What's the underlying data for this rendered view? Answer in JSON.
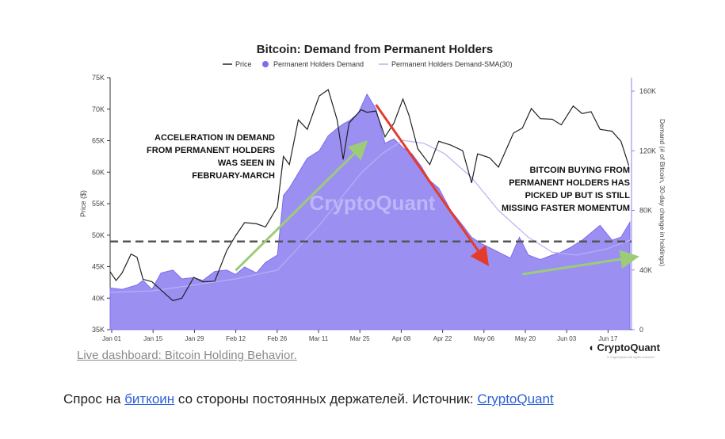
{
  "chart_data": {
    "type": "area+line",
    "title": "Bitcoin: Demand from Permanent Holders",
    "legend": [
      {
        "name": "Price",
        "color": "#222222",
        "style": "line"
      },
      {
        "name": "Permanent Holders Demand",
        "color": "#7b6cf0",
        "style": "dot"
      },
      {
        "name": "Permanent Holders Demand-SMA(30)",
        "color": "#b9b0f3",
        "style": "line"
      }
    ],
    "legend_position": "top-center",
    "y_left": {
      "label": "Price ($)",
      "ticks": [
        "35K",
        "40K",
        "45K",
        "50K",
        "55K",
        "60K",
        "65K",
        "70K",
        "75K"
      ],
      "values": [
        35000,
        40000,
        45000,
        50000,
        55000,
        60000,
        65000,
        70000,
        75000
      ]
    },
    "y_right": {
      "label": "Demand (# of Bitcoin, 30-day change in holdings)",
      "ticks": [
        "0",
        "40K",
        "80K",
        "120K",
        "160K"
      ],
      "values": [
        0,
        40000,
        80000,
        120000,
        160000
      ]
    },
    "x_ticks": [
      "Jan 01",
      "Jan 15",
      "Jan 29",
      "Feb 12",
      "Feb 26",
      "Mar 11",
      "Mar 25",
      "Apr 08",
      "Apr 22",
      "May 06",
      "May 20",
      "Jun 03",
      "Jun 17"
    ],
    "x_start": "2024-01-01",
    "x_end": "2024-06-23",
    "price": [
      [
        "2024-01-01",
        44200
      ],
      [
        "2024-01-03",
        42800
      ],
      [
        "2024-01-05",
        44000
      ],
      [
        "2024-01-08",
        47000
      ],
      [
        "2024-01-10",
        46500
      ],
      [
        "2024-01-12",
        43000
      ],
      [
        "2024-01-15",
        42600
      ],
      [
        "2024-01-18",
        41300
      ],
      [
        "2024-01-22",
        39600
      ],
      [
        "2024-01-25",
        40000
      ],
      [
        "2024-01-29",
        43300
      ],
      [
        "2024-02-01",
        42600
      ],
      [
        "2024-02-05",
        42700
      ],
      [
        "2024-02-09",
        47500
      ],
      [
        "2024-02-12",
        49900
      ],
      [
        "2024-02-15",
        52000
      ],
      [
        "2024-02-19",
        51800
      ],
      [
        "2024-02-22",
        51300
      ],
      [
        "2024-02-26",
        54500
      ],
      [
        "2024-02-28",
        62500
      ],
      [
        "2024-03-01",
        61200
      ],
      [
        "2024-03-04",
        68300
      ],
      [
        "2024-03-07",
        66800
      ],
      [
        "2024-03-11",
        72100
      ],
      [
        "2024-03-14",
        73100
      ],
      [
        "2024-03-17",
        68300
      ],
      [
        "2024-03-19",
        62000
      ],
      [
        "2024-03-21",
        67800
      ],
      [
        "2024-03-25",
        69900
      ],
      [
        "2024-03-27",
        69500
      ],
      [
        "2024-03-30",
        69700
      ],
      [
        "2024-04-02",
        65600
      ],
      [
        "2024-04-05",
        67800
      ],
      [
        "2024-04-08",
        71600
      ],
      [
        "2024-04-10",
        69100
      ],
      [
        "2024-04-13",
        63700
      ],
      [
        "2024-04-17",
        61200
      ],
      [
        "2024-04-20",
        64900
      ],
      [
        "2024-04-24",
        64300
      ],
      [
        "2024-04-28",
        63400
      ],
      [
        "2024-05-01",
        58300
      ],
      [
        "2024-05-03",
        62900
      ],
      [
        "2024-05-07",
        62300
      ],
      [
        "2024-05-10",
        60800
      ],
      [
        "2024-05-15",
        66200
      ],
      [
        "2024-05-18",
        67000
      ],
      [
        "2024-05-21",
        70100
      ],
      [
        "2024-05-24",
        68500
      ],
      [
        "2024-05-28",
        68400
      ],
      [
        "2024-05-31",
        67500
      ],
      [
        "2024-06-04",
        70500
      ],
      [
        "2024-06-07",
        69300
      ],
      [
        "2024-06-10",
        69600
      ],
      [
        "2024-06-13",
        66800
      ],
      [
        "2024-06-17",
        66500
      ],
      [
        "2024-06-20",
        64900
      ],
      [
        "2024-06-23",
        60500
      ]
    ],
    "demand": [
      [
        "2024-01-01",
        28000
      ],
      [
        "2024-01-05",
        27000
      ],
      [
        "2024-01-10",
        30000
      ],
      [
        "2024-01-12",
        33000
      ],
      [
        "2024-01-15",
        27000
      ],
      [
        "2024-01-18",
        38000
      ],
      [
        "2024-01-22",
        40000
      ],
      [
        "2024-01-25",
        34000
      ],
      [
        "2024-01-29",
        35000
      ],
      [
        "2024-02-01",
        33000
      ],
      [
        "2024-02-05",
        39000
      ],
      [
        "2024-02-09",
        40000
      ],
      [
        "2024-02-12",
        37000
      ],
      [
        "2024-02-15",
        42000
      ],
      [
        "2024-02-19",
        38000
      ],
      [
        "2024-02-22",
        45000
      ],
      [
        "2024-02-26",
        50000
      ],
      [
        "2024-02-28",
        90000
      ],
      [
        "2024-03-01",
        95000
      ],
      [
        "2024-03-04",
        105000
      ],
      [
        "2024-03-07",
        115000
      ],
      [
        "2024-03-11",
        120000
      ],
      [
        "2024-03-14",
        130000
      ],
      [
        "2024-03-17",
        135000
      ],
      [
        "2024-03-19",
        138000
      ],
      [
        "2024-03-21",
        140000
      ],
      [
        "2024-03-24",
        145000
      ],
      [
        "2024-03-27",
        158000
      ],
      [
        "2024-03-30",
        148000
      ],
      [
        "2024-04-02",
        125000
      ],
      [
        "2024-04-05",
        128000
      ],
      [
        "2024-04-08",
        122000
      ],
      [
        "2024-04-11",
        118000
      ],
      [
        "2024-04-14",
        110000
      ],
      [
        "2024-04-17",
        100000
      ],
      [
        "2024-04-20",
        95000
      ],
      [
        "2024-04-24",
        80000
      ],
      [
        "2024-04-28",
        70000
      ],
      [
        "2024-05-01",
        62000
      ],
      [
        "2024-05-04",
        58000
      ],
      [
        "2024-05-07",
        55000
      ],
      [
        "2024-05-10",
        52000
      ],
      [
        "2024-05-14",
        48000
      ],
      [
        "2024-05-17",
        62000
      ],
      [
        "2024-05-20",
        50000
      ],
      [
        "2024-05-24",
        47000
      ],
      [
        "2024-05-28",
        50000
      ],
      [
        "2024-05-31",
        52000
      ],
      [
        "2024-06-03",
        55000
      ],
      [
        "2024-06-07",
        60000
      ],
      [
        "2024-06-10",
        65000
      ],
      [
        "2024-06-13",
        70000
      ],
      [
        "2024-06-17",
        60000
      ],
      [
        "2024-06-20",
        62000
      ],
      [
        "2024-06-23",
        72000
      ]
    ],
    "demand_sma30": [
      [
        "2024-01-01",
        25000
      ],
      [
        "2024-01-15",
        26000
      ],
      [
        "2024-01-29",
        30000
      ],
      [
        "2024-02-12",
        34000
      ],
      [
        "2024-02-26",
        40000
      ],
      [
        "2024-03-11",
        70000
      ],
      [
        "2024-03-25",
        105000
      ],
      [
        "2024-04-01",
        118000
      ],
      [
        "2024-04-08",
        127000
      ],
      [
        "2024-04-15",
        125000
      ],
      [
        "2024-04-22",
        118000
      ],
      [
        "2024-05-01",
        102000
      ],
      [
        "2024-05-10",
        80000
      ],
      [
        "2024-05-20",
        62000
      ],
      [
        "2024-05-28",
        52000
      ],
      [
        "2024-06-05",
        50000
      ],
      [
        "2024-06-15",
        54000
      ],
      [
        "2024-06-23",
        60000
      ]
    ],
    "threshold_line": {
      "value": 49000,
      "style": "dashed",
      "color": "#555555"
    },
    "annotations": [
      {
        "text": [
          "ACCELERATION IN DEMAND",
          "FROM PERMANENT HOLDERS",
          "WAS SEEN IN",
          "FEBRUARY-MARCH"
        ],
        "align": "right"
      },
      {
        "text": [
          "BITCOIN BUYING FROM",
          "PERMANENT HOLDERS HAS",
          "PICKED UP BUT IS STILL",
          "MISSING FASTER MOMENTUM"
        ],
        "align": "right"
      }
    ],
    "arrows": [
      {
        "from": [
          "2024-02-12",
          44400
        ],
        "to": [
          "2024-03-25",
          64000
        ],
        "color": "#9ccc78"
      },
      {
        "from": [
          "2024-03-30",
          70700
        ],
        "to": [
          "2024-05-05",
          46300
        ],
        "color": "#e53b2c"
      },
      {
        "from": [
          "2024-05-18",
          43800
        ],
        "to": [
          "2024-06-23",
          46400
        ],
        "color": "#9ccc78"
      }
    ],
    "watermark": "CryptoQuant",
    "grid": false
  },
  "brand": {
    "name": "CryptoQuant",
    "sub": "© CryptoQuant All rights reserved"
  },
  "live_link": "Live dashboard: Bitcoin Holding Behavior.",
  "caption": {
    "before": "Спрос на ",
    "link1": "биткоин",
    "middle": " со стороны постоянных держателей. Источник: ",
    "link2": "CryptoQuant"
  }
}
